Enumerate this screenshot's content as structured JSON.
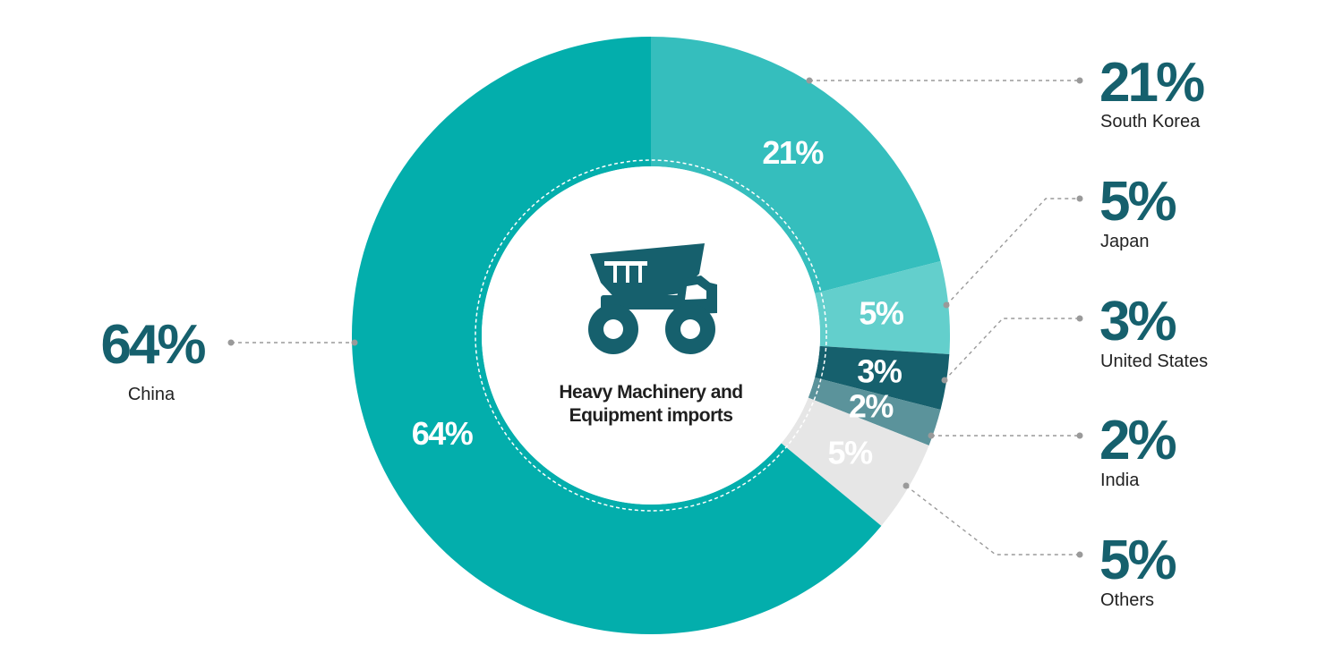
{
  "chart_data": {
    "type": "pie",
    "title": "Heavy Machinery and Equipment imports",
    "title_lines": [
      "Heavy Machinery and",
      "Equipment imports"
    ],
    "unit": "%",
    "slices": [
      {
        "name": "South Korea",
        "value": 21,
        "label": "21%",
        "color": "#35bebd"
      },
      {
        "name": "Japan",
        "value": 5,
        "label": "5%",
        "color": "#63cfcc"
      },
      {
        "name": "United States",
        "value": 3,
        "label": "3%",
        "color": "#16606d"
      },
      {
        "name": "India",
        "value": 2,
        "label": "2%",
        "color": "#5b939b"
      },
      {
        "name": "Others",
        "value": 5,
        "label": "5%",
        "color": "#e6e6e6"
      },
      {
        "name": "China",
        "value": 64,
        "label": "64%",
        "color": "#03aeac"
      }
    ],
    "center_icon": "dump-truck-icon"
  }
}
